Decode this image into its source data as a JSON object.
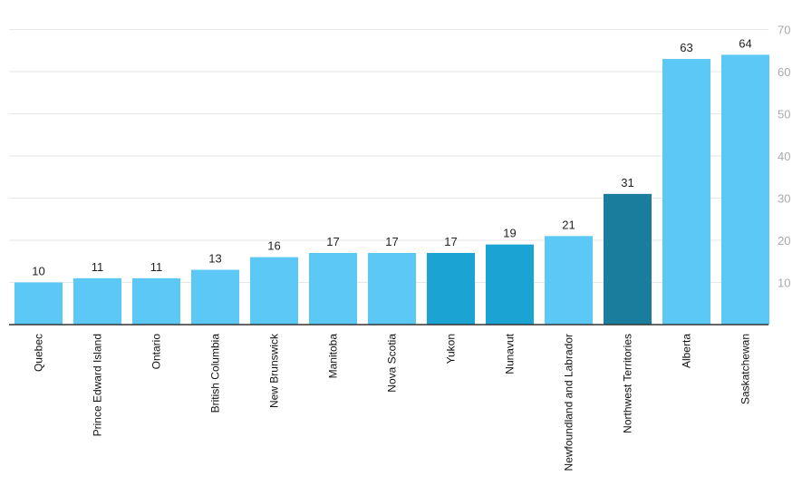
{
  "chart_data": {
    "type": "bar",
    "title": "",
    "xlabel": "",
    "ylabel": "",
    "ylim": [
      0,
      70
    ],
    "yticks": [
      10,
      20,
      30,
      40,
      50,
      60,
      70
    ],
    "y_axis_position": "right",
    "grid": true,
    "categories": [
      "Quebec",
      "Prince Edward Island",
      "Ontario",
      "British Columbia",
      "New Brunswick",
      "Manitoba",
      "Nova Scotia",
      "Yukon",
      "Nunavut",
      "Newfoundland and Labrador",
      "Northwest Territories",
      "Alberta",
      "Saskatchewan"
    ],
    "values": [
      10,
      11,
      11,
      13,
      16,
      17,
      17,
      17,
      19,
      21,
      31,
      63,
      64
    ],
    "bar_colors": [
      "#5bc8f5",
      "#5bc8f5",
      "#5bc8f5",
      "#5bc8f5",
      "#5bc8f5",
      "#5bc8f5",
      "#5bc8f5",
      "#1ba3d4",
      "#1ba3d4",
      "#5bc8f5",
      "#1b7d9e",
      "#5bc8f5",
      "#5bc8f5"
    ],
    "colors": {
      "grid": "#e6e6e6",
      "axis": "#333333",
      "tick_label": "#aaaaaa",
      "value_label": "#222222",
      "category_label": "#111111"
    }
  }
}
